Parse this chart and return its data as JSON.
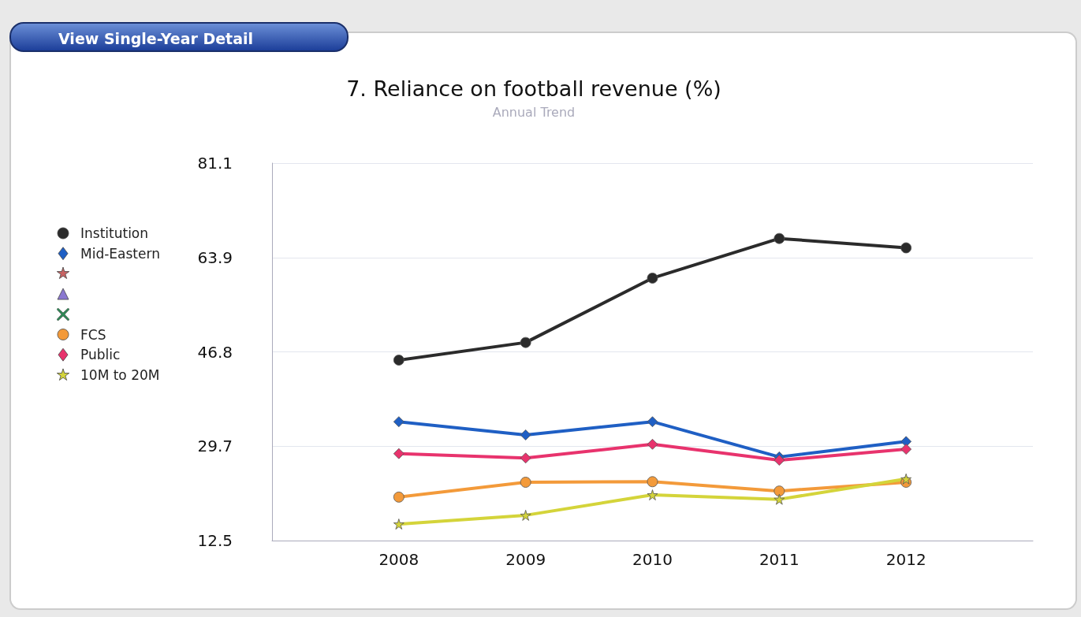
{
  "chart_data": {
    "type": "line",
    "title": "7. Reliance on football revenue (%)",
    "subtitle": "Annual Trend",
    "annotations": [
      "View Single-Year Detail"
    ],
    "categories": [
      null,
      "2008",
      "2009",
      "2010",
      "2011",
      "2012",
      null
    ],
    "ylim": [
      12.5,
      81.1
    ],
    "yticks": [
      12.5,
      29.7,
      46.8,
      63.9,
      81.1
    ],
    "grid": "y",
    "legend": "left",
    "series": [
      {
        "name": "Institution",
        "color": "#2b2b2b",
        "marker": "circle",
        "values": [
          null,
          45.3,
          48.5,
          60.2,
          67.4,
          65.7,
          null
        ]
      },
      {
        "name": "Mid-Eastern",
        "color": "#1f5fc4",
        "marker": "diamond",
        "values": [
          null,
          34.1,
          31.7,
          34.1,
          27.7,
          30.5,
          null
        ]
      },
      {
        "name": "FCS",
        "color": "#f39a3a",
        "marker": "circle",
        "values": [
          null,
          20.4,
          23.1,
          23.2,
          21.5,
          23.1,
          null
        ]
      },
      {
        "name": "Public",
        "color": "#e8336d",
        "marker": "diamond",
        "values": [
          null,
          28.3,
          27.5,
          30.0,
          27.1,
          29.1,
          null
        ]
      },
      {
        "name": "10M to 20M",
        "color": "#d4d43a",
        "marker": "star",
        "values": [
          null,
          15.5,
          17.1,
          20.8,
          20.0,
          23.7,
          null
        ]
      }
    ]
  }
}
